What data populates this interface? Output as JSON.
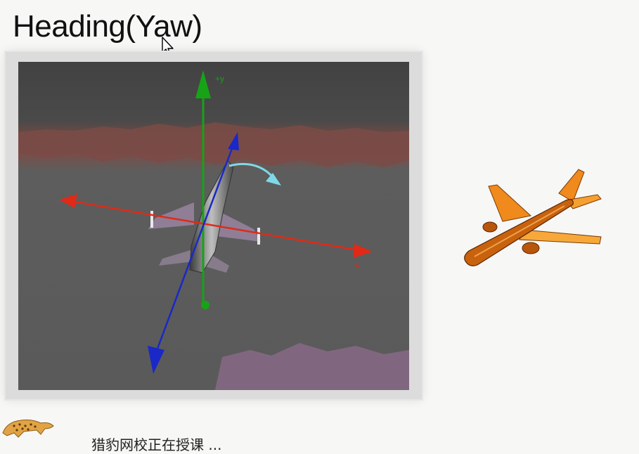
{
  "slide": {
    "title": "Heading(Yaw)"
  },
  "scene": {
    "axis_labels": {
      "y_up": "+y",
      "x_neg": "-x"
    },
    "colors": {
      "x_axis": "#e02a17",
      "y_axis": "#16a316",
      "z_axis": "#1a28c8",
      "rotation_arrow": "#7fd8e8"
    }
  },
  "footer": {
    "status_text": "猎豹网校正在授课 ..."
  },
  "icons": {
    "cursor": "mouse-pointer-icon",
    "logo": "cheetah-logo",
    "plane": "airplane-illustration"
  }
}
